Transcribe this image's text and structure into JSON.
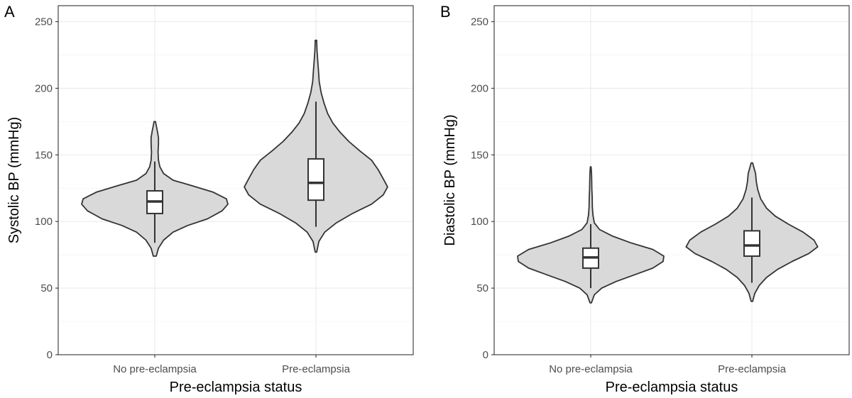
{
  "chart_data": [
    {
      "panel_label": "A",
      "type": "violin",
      "xlabel": "Pre-eclampsia status",
      "ylabel": "Systolic BP (mmHg)",
      "ylim": [
        0,
        262
      ],
      "y_ticks": [
        0,
        50,
        100,
        150,
        200,
        250
      ],
      "grid": true,
      "fill_color": "#d9d9d9",
      "categories": [
        "No pre-eclampsia",
        "Pre-eclampsia"
      ],
      "groups": [
        {
          "name": "No pre-eclampsia",
          "min": 74,
          "q1": 106,
          "median": 115,
          "q3": 123,
          "max": 175,
          "whisker_low": 84,
          "whisker_high": 145,
          "density": [
            [
              74,
              0.02
            ],
            [
              80,
              0.05
            ],
            [
              86,
              0.12
            ],
            [
              92,
              0.25
            ],
            [
              97,
              0.45
            ],
            [
              102,
              0.72
            ],
            [
              108,
              0.92
            ],
            [
              113,
              1.0
            ],
            [
              117,
              0.98
            ],
            [
              122,
              0.8
            ],
            [
              127,
              0.5
            ],
            [
              131,
              0.25
            ],
            [
              136,
              0.12
            ],
            [
              141,
              0.07
            ],
            [
              146,
              0.05
            ],
            [
              152,
              0.045
            ],
            [
              158,
              0.05
            ],
            [
              163,
              0.05
            ],
            [
              168,
              0.035
            ],
            [
              172,
              0.02
            ],
            [
              175,
              0.01
            ]
          ]
        },
        {
          "name": "Pre-eclampsia",
          "min": 77,
          "q1": 116,
          "median": 129,
          "q3": 147,
          "max": 236,
          "whisker_low": 96,
          "whisker_high": 190,
          "density": [
            [
              77,
              0.01
            ],
            [
              85,
              0.04
            ],
            [
              92,
              0.12
            ],
            [
              99,
              0.28
            ],
            [
              106,
              0.5
            ],
            [
              113,
              0.76
            ],
            [
              120,
              0.92
            ],
            [
              126,
              0.98
            ],
            [
              132,
              0.92
            ],
            [
              139,
              0.85
            ],
            [
              146,
              0.76
            ],
            [
              153,
              0.6
            ],
            [
              160,
              0.45
            ],
            [
              167,
              0.33
            ],
            [
              174,
              0.23
            ],
            [
              181,
              0.16
            ],
            [
              189,
              0.11
            ],
            [
              197,
              0.07
            ],
            [
              205,
              0.045
            ],
            [
              213,
              0.035
            ],
            [
              220,
              0.025
            ],
            [
              228,
              0.015
            ],
            [
              236,
              0.01
            ]
          ]
        }
      ]
    },
    {
      "panel_label": "B",
      "type": "violin",
      "xlabel": "Pre-eclampsia status",
      "ylabel": "Diastolic BP (mmHg)",
      "ylim": [
        0,
        262
      ],
      "y_ticks": [
        0,
        50,
        100,
        150,
        200,
        250
      ],
      "grid": true,
      "fill_color": "#d9d9d9",
      "categories": [
        "No pre-eclampsia",
        "Pre-eclampsia"
      ],
      "groups": [
        {
          "name": "No pre-eclampsia",
          "min": 39,
          "q1": 65,
          "median": 73,
          "q3": 80,
          "max": 141,
          "whisker_low": 50,
          "whisker_high": 98,
          "density": [
            [
              39,
              0.01
            ],
            [
              45,
              0.05
            ],
            [
              50,
              0.15
            ],
            [
              55,
              0.35
            ],
            [
              60,
              0.6
            ],
            [
              65,
              0.85
            ],
            [
              70,
              0.99
            ],
            [
              74,
              1.0
            ],
            [
              79,
              0.85
            ],
            [
              84,
              0.55
            ],
            [
              89,
              0.3
            ],
            [
              94,
              0.12
            ],
            [
              99,
              0.05
            ],
            [
              105,
              0.03
            ],
            [
              111,
              0.022
            ],
            [
              118,
              0.02
            ],
            [
              124,
              0.016
            ],
            [
              130,
              0.014
            ],
            [
              135,
              0.012
            ],
            [
              138,
              0.009
            ],
            [
              141,
              0.005
            ]
          ]
        },
        {
          "name": "Pre-eclampsia",
          "min": 40,
          "q1": 74,
          "median": 82,
          "q3": 93,
          "max": 144,
          "whisker_low": 54,
          "whisker_high": 118,
          "density": [
            [
              40,
              0.01
            ],
            [
              46,
              0.04
            ],
            [
              52,
              0.1
            ],
            [
              58,
              0.2
            ],
            [
              64,
              0.35
            ],
            [
              70,
              0.55
            ],
            [
              76,
              0.78
            ],
            [
              81,
              0.9
            ],
            [
              86,
              0.85
            ],
            [
              92,
              0.7
            ],
            [
              98,
              0.5
            ],
            [
              104,
              0.32
            ],
            [
              110,
              0.2
            ],
            [
              117,
              0.12
            ],
            [
              124,
              0.08
            ],
            [
              130,
              0.06
            ],
            [
              136,
              0.05
            ],
            [
              140,
              0.03
            ],
            [
              144,
              0.01
            ]
          ]
        }
      ]
    }
  ]
}
